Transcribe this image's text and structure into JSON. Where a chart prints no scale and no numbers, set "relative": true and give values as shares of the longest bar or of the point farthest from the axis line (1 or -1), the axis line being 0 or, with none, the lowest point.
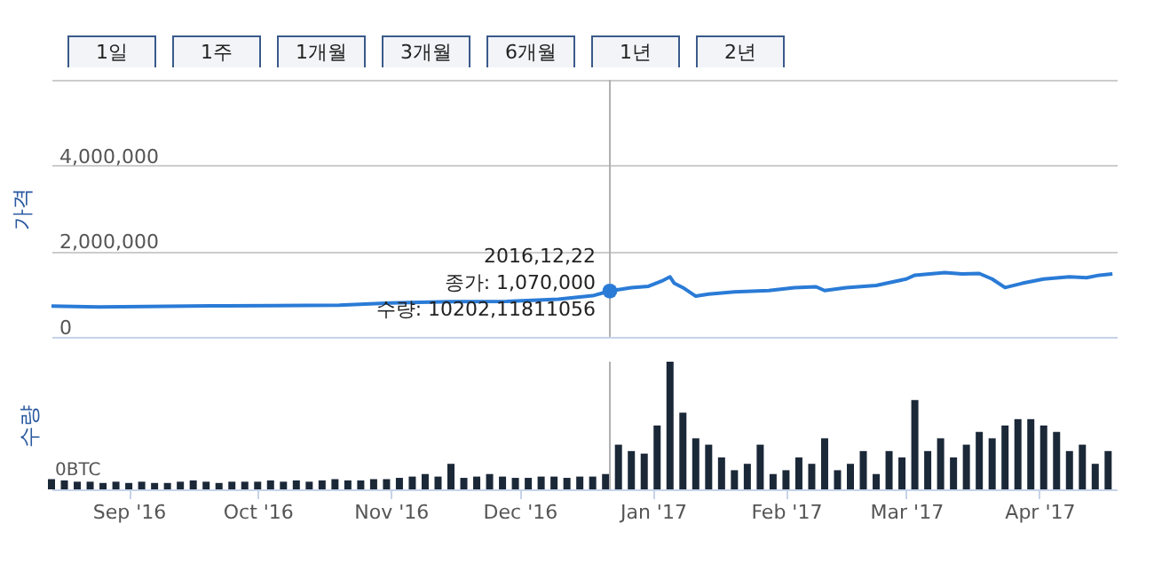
{
  "chart_data": [
    {
      "type": "line",
      "ylabel": "가격",
      "xlim": [
        "2016-08-14",
        "2017-04-19"
      ],
      "ylim": [
        0,
        6000000
      ],
      "yticks": [
        {
          "value": 0,
          "label": "0"
        },
        {
          "value": 2000000,
          "label": "2,000,000"
        },
        {
          "value": 4000000,
          "label": "4,000,000"
        },
        {
          "value": 6000000,
          "label": null
        }
      ],
      "grid": "y",
      "tick_labels": "y",
      "line_style": "solid",
      "ref_lines": [
        {
          "axis": "x",
          "value": "2016-12-22",
          "color": "#b0b0b0"
        }
      ],
      "annotations": [
        "1일",
        "1주",
        "1개월",
        "3개월",
        "6개월",
        "1년",
        "2년",
        {
          "text": "2016,12,22\n종가: 1,070,000\n수량: 10202,11811056",
          "x": "2016-12-22",
          "y": 1070000
        }
      ],
      "series": [
        {
          "color": "#2a7bd6",
          "x": [
            "2016-08-14",
            "2016-08-25",
            "2016-09-05",
            "2016-09-20",
            "2016-10-05",
            "2016-10-20",
            "2016-11-01",
            "2016-11-15",
            "2016-11-28",
            "2016-12-10",
            "2016-12-18",
            "2016-12-22",
            "2016-12-27",
            "2016-12-31",
            "2017-01-03",
            "2017-01-05",
            "2017-01-06",
            "2017-01-08",
            "2017-01-11",
            "2017-01-14",
            "2017-01-20",
            "2017-01-28",
            "2017-02-03",
            "2017-02-08",
            "2017-02-10",
            "2017-02-15",
            "2017-02-22",
            "2017-03-01",
            "2017-03-03",
            "2017-03-10",
            "2017-03-14",
            "2017-03-18",
            "2017-03-21",
            "2017-03-24",
            "2017-03-28",
            "2017-04-02",
            "2017-04-08",
            "2017-04-12",
            "2017-04-15",
            "2017-04-18"
          ],
          "values": [
            720000,
            700000,
            710000,
            725000,
            730000,
            740000,
            790000,
            820000,
            830000,
            880000,
            960000,
            1070000,
            1150000,
            1180000,
            1300000,
            1400000,
            1250000,
            1150000,
            950000,
            1000000,
            1050000,
            1080000,
            1150000,
            1170000,
            1080000,
            1150000,
            1200000,
            1350000,
            1440000,
            1500000,
            1470000,
            1480000,
            1350000,
            1150000,
            1250000,
            1350000,
            1400000,
            1380000,
            1440000,
            1470000
          ]
        }
      ]
    },
    {
      "type": "bar",
      "ylabel": "수량",
      "relative": true,
      "xlim": [
        "2016-08-14",
        "2017-04-19"
      ],
      "xticks": [
        {
          "value": "2016-09-01",
          "label": "Sep '16"
        },
        {
          "value": "2016-10-01",
          "label": "Oct '16"
        },
        {
          "value": "2016-11-01",
          "label": "Nov '16"
        },
        {
          "value": "2016-12-01",
          "label": "Dec '16"
        },
        {
          "value": "2017-01-01",
          "label": "Jan '17"
        },
        {
          "value": "2017-02-01",
          "label": "Feb '17"
        },
        {
          "value": "2017-03-01",
          "label": "Mar '17"
        },
        {
          "value": "2017-04-01",
          "label": "Apr '17"
        }
      ],
      "tick_labels": "x",
      "ref_lines": [
        {
          "axis": "x",
          "value": "2016-12-22",
          "color": "#b0b0b0"
        }
      ],
      "annotations": [
        "0BTC"
      ],
      "series": [
        {
          "color": "#1b2838",
          "x": [
            "2016-08-14",
            "2016-08-17",
            "2016-08-20",
            "2016-08-23",
            "2016-08-26",
            "2016-08-29",
            "2016-09-01",
            "2016-09-04",
            "2016-09-07",
            "2016-09-10",
            "2016-09-13",
            "2016-09-16",
            "2016-09-19",
            "2016-09-22",
            "2016-09-25",
            "2016-09-28",
            "2016-10-01",
            "2016-10-04",
            "2016-10-07",
            "2016-10-10",
            "2016-10-13",
            "2016-10-16",
            "2016-10-19",
            "2016-10-22",
            "2016-10-25",
            "2016-10-28",
            "2016-10-31",
            "2016-11-03",
            "2016-11-06",
            "2016-11-09",
            "2016-11-12",
            "2016-11-15",
            "2016-11-18",
            "2016-11-21",
            "2016-11-24",
            "2016-11-27",
            "2016-11-30",
            "2016-12-03",
            "2016-12-06",
            "2016-12-09",
            "2016-12-12",
            "2016-12-15",
            "2016-12-18",
            "2016-12-21",
            "2016-12-24",
            "2016-12-27",
            "2016-12-30",
            "2017-01-02",
            "2017-01-05",
            "2017-01-08",
            "2017-01-11",
            "2017-01-14",
            "2017-01-17",
            "2017-01-20",
            "2017-01-23",
            "2017-01-26",
            "2017-01-29",
            "2017-02-01",
            "2017-02-04",
            "2017-02-07",
            "2017-02-10",
            "2017-02-13",
            "2017-02-16",
            "2017-02-19",
            "2017-02-22",
            "2017-02-25",
            "2017-02-28",
            "2017-03-03",
            "2017-03-06",
            "2017-03-09",
            "2017-03-12",
            "2017-03-15",
            "2017-03-18",
            "2017-03-21",
            "2017-03-24",
            "2017-03-27",
            "2017-03-30",
            "2017-04-02",
            "2017-04-05",
            "2017-04-08",
            "2017-04-11",
            "2017-04-14",
            "2017-04-17"
          ],
          "values": [
            0.08,
            0.07,
            0.06,
            0.06,
            0.05,
            0.06,
            0.05,
            0.06,
            0.05,
            0.05,
            0.06,
            0.07,
            0.06,
            0.05,
            0.06,
            0.06,
            0.06,
            0.07,
            0.06,
            0.07,
            0.06,
            0.07,
            0.08,
            0.07,
            0.07,
            0.08,
            0.08,
            0.09,
            0.1,
            0.12,
            0.1,
            0.2,
            0.09,
            0.1,
            0.12,
            0.1,
            0.09,
            0.09,
            0.1,
            0.1,
            0.09,
            0.1,
            0.1,
            0.12,
            0.35,
            0.3,
            0.28,
            0.5,
            1.0,
            0.6,
            0.4,
            0.35,
            0.25,
            0.15,
            0.2,
            0.35,
            0.12,
            0.15,
            0.25,
            0.2,
            0.4,
            0.15,
            0.2,
            0.3,
            0.12,
            0.3,
            0.25,
            0.7,
            0.3,
            0.4,
            0.25,
            0.35,
            0.45,
            0.4,
            0.5,
            0.55,
            0.55,
            0.5,
            0.45,
            0.3,
            0.35,
            0.2,
            0.3
          ]
        }
      ]
    }
  ]
}
